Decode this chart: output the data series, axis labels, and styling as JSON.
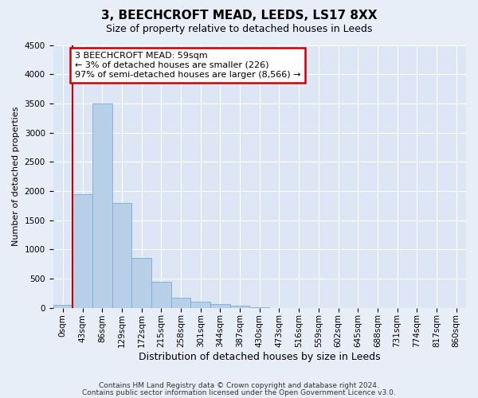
{
  "title1": "3, BEECHCROFT MEAD, LEEDS, LS17 8XX",
  "title2": "Size of property relative to detached houses in Leeds",
  "xlabel": "Distribution of detached houses by size in Leeds",
  "ylabel": "Number of detached properties",
  "bar_labels": [
    "0sqm",
    "43sqm",
    "86sqm",
    "129sqm",
    "172sqm",
    "215sqm",
    "258sqm",
    "301sqm",
    "344sqm",
    "387sqm",
    "430sqm",
    "473sqm",
    "516sqm",
    "559sqm",
    "602sqm",
    "645sqm",
    "688sqm",
    "731sqm",
    "774sqm",
    "817sqm",
    "860sqm"
  ],
  "bar_heights": [
    50,
    1950,
    3500,
    1800,
    850,
    450,
    175,
    100,
    60,
    30,
    10,
    2,
    0,
    0,
    0,
    0,
    0,
    0,
    0,
    0,
    0
  ],
  "bar_color": "#b8cfe8",
  "bar_edge_color": "#7aadd4",
  "vline_x": 1,
  "vline_color": "#cc0000",
  "ylim": [
    0,
    4500
  ],
  "yticks": [
    0,
    500,
    1000,
    1500,
    2000,
    2500,
    3000,
    3500,
    4000,
    4500
  ],
  "annotation_text": "3 BEECHCROFT MEAD: 59sqm\n← 3% of detached houses are smaller (226)\n97% of semi-detached houses are larger (8,566) →",
  "annotation_box_color": "#cc0000",
  "footer1": "Contains HM Land Registry data © Crown copyright and database right 2024.",
  "footer2": "Contains public sector information licensed under the Open Government Licence v3.0.",
  "bg_color": "#e8eef8",
  "plot_bg_color": "#dce6f5",
  "grid_color": "#ffffff",
  "title1_fontsize": 11,
  "title2_fontsize": 9,
  "ylabel_fontsize": 8,
  "xlabel_fontsize": 9,
  "tick_fontsize": 7.5,
  "footer_fontsize": 6.5,
  "annot_fontsize": 8
}
